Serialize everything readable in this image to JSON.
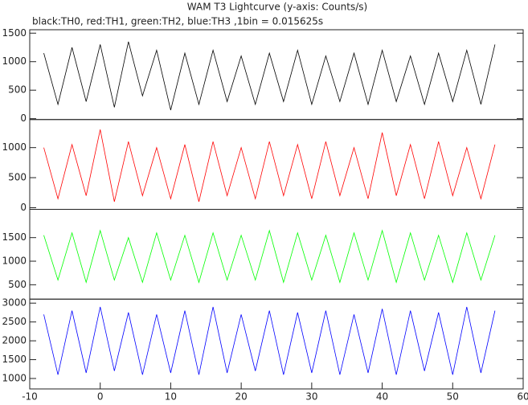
{
  "chart_data": [
    {
      "type": "line",
      "title": "WAM T3 Lightcurve (y-axis: Counts/s)",
      "subtitle": "black:TH0, red:TH1, green:TH2, blue:TH3 ,1bin = 0.015625s",
      "x": [
        -8,
        -6,
        -4,
        -2,
        0,
        2,
        4,
        6,
        8,
        10,
        12,
        14,
        16,
        18,
        20,
        22,
        24,
        26,
        28,
        30,
        32,
        34,
        36,
        38,
        40,
        42,
        44,
        46,
        48,
        50,
        52,
        54,
        56
      ],
      "series": [
        {
          "color": "#000000",
          "values": [
            1150,
            250,
            1250,
            300,
            1300,
            200,
            1350,
            400,
            1200,
            150,
            1150,
            250,
            1200,
            300,
            1100,
            250,
            1150,
            300,
            1200,
            250,
            1100,
            300,
            1150,
            250,
            1200,
            300,
            1100,
            250,
            1150,
            300,
            1200,
            250,
            1300
          ]
        }
      ],
      "ylim": [
        -15,
        1560
      ],
      "yticks": [
        0,
        500,
        1000,
        1500
      ]
    },
    {
      "type": "line",
      "x": [
        -8,
        -6,
        -4,
        -2,
        0,
        2,
        4,
        6,
        8,
        10,
        12,
        14,
        16,
        18,
        20,
        22,
        24,
        26,
        28,
        30,
        32,
        34,
        36,
        38,
        40,
        42,
        44,
        46,
        48,
        50,
        52,
        54,
        56
      ],
      "series": [
        {
          "color": "#ff0000",
          "values": [
            1000,
            150,
            1050,
            200,
            1300,
            100,
            1100,
            200,
            1000,
            150,
            1050,
            100,
            1100,
            200,
            1000,
            150,
            1100,
            200,
            1050,
            150,
            1100,
            200,
            1000,
            150,
            1250,
            200,
            1050,
            150,
            1100,
            200,
            1000,
            150,
            1050
          ]
        }
      ],
      "ylim": [
        -27,
        1467
      ],
      "yticks": [
        0,
        500,
        1000
      ]
    },
    {
      "type": "line",
      "x": [
        -8,
        -6,
        -4,
        -2,
        0,
        2,
        4,
        6,
        8,
        10,
        12,
        14,
        16,
        18,
        20,
        22,
        24,
        26,
        28,
        30,
        32,
        34,
        36,
        38,
        40,
        42,
        44,
        46,
        48,
        50,
        52,
        54,
        56
      ],
      "series": [
        {
          "color": "#00ff00",
          "values": [
            1550,
            600,
            1600,
            550,
            1650,
            600,
            1500,
            550,
            1600,
            600,
            1550,
            550,
            1600,
            600,
            1550,
            600,
            1650,
            550,
            1600,
            600,
            1550,
            550,
            1600,
            600,
            1650,
            550,
            1600,
            600,
            1550,
            550,
            1600,
            600,
            1550
          ]
        }
      ],
      "ylim": [
        195,
        2100
      ],
      "yticks": [
        500,
        1000,
        1500
      ]
    },
    {
      "type": "line",
      "x": [
        -8,
        -6,
        -4,
        -2,
        0,
        2,
        4,
        6,
        8,
        10,
        12,
        14,
        16,
        18,
        20,
        22,
        24,
        26,
        28,
        30,
        32,
        34,
        36,
        38,
        40,
        42,
        44,
        46,
        48,
        50,
        52,
        54,
        56
      ],
      "series": [
        {
          "color": "#0000ff",
          "values": [
            2700,
            1100,
            2800,
            1150,
            2900,
            1200,
            2750,
            1100,
            2700,
            1150,
            2800,
            1100,
            2900,
            1150,
            2700,
            1200,
            2800,
            1100,
            2750,
            1150,
            2800,
            1100,
            2700,
            1150,
            2850,
            1100,
            2800,
            1200,
            2750,
            1100,
            2900,
            1150,
            2800
          ]
        }
      ],
      "ylim": [
        723,
        3106
      ],
      "yticks": [
        1000,
        1500,
        2000,
        2500,
        3000
      ],
      "xlim": [
        -10,
        60
      ],
      "xticks": [
        -10,
        0,
        10,
        20,
        30,
        40,
        50,
        60
      ]
    }
  ]
}
